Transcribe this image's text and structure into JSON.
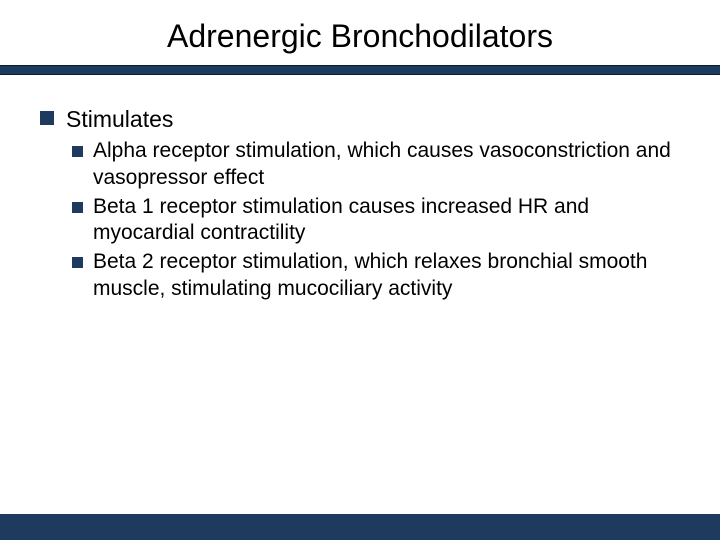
{
  "colors": {
    "accent": "#1f3a5f",
    "text": "#000000",
    "background": "#ffffff"
  },
  "typography": {
    "title_fontsize": 32,
    "body_l1_fontsize": 23,
    "body_l2_fontsize": 21,
    "font_family": "Arial"
  },
  "slide": {
    "title": "Adrenergic Bronchodilators",
    "bullets": [
      {
        "text": "Stimulates",
        "children": [
          {
            "text": "Alpha receptor stimulation, which causes vasoconstriction and vasopressor effect"
          },
          {
            "text": "Beta 1 receptor stimulation causes increased HR and myocardial contractility"
          },
          {
            "text": "Beta 2 receptor stimulation, which relaxes bronchial smooth muscle, stimulating mucociliary activity"
          }
        ]
      }
    ]
  }
}
